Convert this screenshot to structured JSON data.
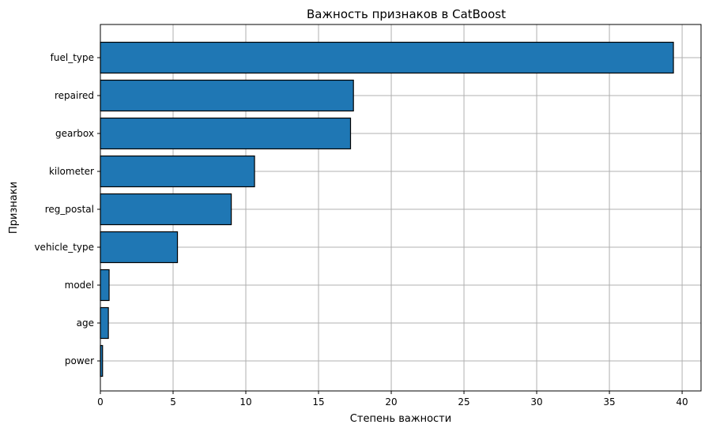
{
  "chart_data": {
    "type": "bar",
    "orientation": "horizontal",
    "title": "Важность признаков в CatBoost",
    "xlabel": "Степень важности",
    "ylabel": "Признаки",
    "categories": [
      "fuel_type",
      "repaired",
      "gearbox",
      "kilometer",
      "reg_postal",
      "vehicle_type",
      "model",
      "age",
      "power"
    ],
    "values": [
      39.4,
      17.4,
      17.2,
      10.6,
      9.0,
      5.3,
      0.6,
      0.55,
      0.15
    ],
    "xlim": [
      0,
      41.3
    ],
    "xticks": [
      "0",
      "5",
      "10",
      "15",
      "20",
      "25",
      "30",
      "35",
      "40"
    ],
    "grid": true,
    "bar_color": "#1f77b4",
    "edge_color": "#000000"
  }
}
